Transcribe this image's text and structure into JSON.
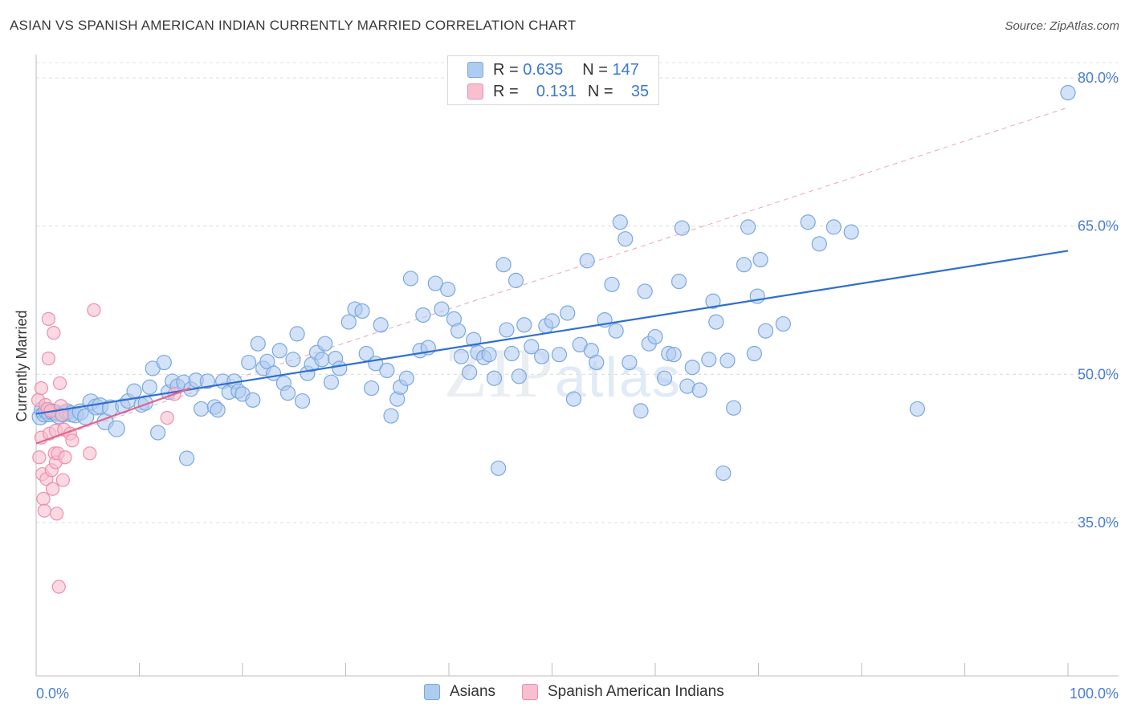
{
  "title": "ASIAN VS SPANISH AMERICAN INDIAN CURRENTLY MARRIED CORRELATION CHART",
  "source": "Source: ZipAtlas.com",
  "watermark": {
    "zip": "ZIP",
    "atlas": "atlas"
  },
  "legend": {
    "rows": [
      {
        "r_label": "R =",
        "r_value": "0.635",
        "n_label": "N =",
        "n_value": "147",
        "color": "#aecbf0",
        "border": "#7aa8e0"
      },
      {
        "r_label": "R =",
        "r_value": "0.131",
        "n_label": "N =",
        "n_value": "35",
        "color": "#f8bfcf",
        "border": "#ee8fab"
      }
    ]
  },
  "bottom_legend": [
    {
      "label": "Asians",
      "color": "#aecbf0",
      "border": "#7aa8e0"
    },
    {
      "label": "Spanish American Indians",
      "color": "#f8bfcf",
      "border": "#ee8fab"
    }
  ],
  "chart_data": {
    "type": "scatter",
    "title": "ASIAN VS SPANISH AMERICAN INDIAN CURRENTLY MARRIED CORRELATION CHART",
    "xlabel": "",
    "ylabel": "Currently Married",
    "xlim": [
      0,
      100
    ],
    "ylim": [
      20,
      82
    ],
    "x_tick_labels": [
      "0.0%",
      "100.0%"
    ],
    "y_ticks": [
      35,
      50,
      65,
      80
    ],
    "y_tick_labels": [
      "35.0%",
      "50.0%",
      "65.0%",
      "80.0%"
    ],
    "grid": true,
    "legend_position": "top-center",
    "series": [
      {
        "name": "Asians",
        "color": "#7aa8e0",
        "fill": "#aecbf0",
        "trend": {
          "x": [
            0,
            100
          ],
          "y": [
            46.0,
            62.5
          ],
          "color": "#2f6fd0"
        },
        "points": [
          [
            0.4,
            45.7
          ],
          [
            0.6,
            46.4
          ],
          [
            0.8,
            46.0
          ],
          [
            1.0,
            46.3
          ],
          [
            1.3,
            46.0
          ],
          [
            1.6,
            46.2
          ],
          [
            1.9,
            46.1
          ],
          [
            2.2,
            45.8
          ],
          [
            2.6,
            46.0
          ],
          [
            3.0,
            46.2
          ],
          [
            3.4,
            46.0
          ],
          [
            3.8,
            45.9
          ],
          [
            4.3,
            46.2
          ],
          [
            4.8,
            45.7
          ],
          [
            5.3,
            47.2
          ],
          [
            5.8,
            46.7
          ],
          [
            6.2,
            46.8
          ],
          [
            6.7,
            45.2
          ],
          [
            7.2,
            46.6
          ],
          [
            7.8,
            44.5
          ],
          [
            8.4,
            46.8
          ],
          [
            8.9,
            47.3
          ],
          [
            9.5,
            48.3
          ],
          [
            10.2,
            46.9
          ],
          [
            10.6,
            47.1
          ],
          [
            11.0,
            48.7
          ],
          [
            11.3,
            50.6
          ],
          [
            11.8,
            44.1
          ],
          [
            12.4,
            51.2
          ],
          [
            12.8,
            48.2
          ],
          [
            13.2,
            49.3
          ],
          [
            13.7,
            48.8
          ],
          [
            14.3,
            49.2
          ],
          [
            14.6,
            41.5
          ],
          [
            15.0,
            48.5
          ],
          [
            15.5,
            49.4
          ],
          [
            16.0,
            46.5
          ],
          [
            16.6,
            49.3
          ],
          [
            17.3,
            46.7
          ],
          [
            17.6,
            46.4
          ],
          [
            18.1,
            49.3
          ],
          [
            18.7,
            48.2
          ],
          [
            19.2,
            49.3
          ],
          [
            19.6,
            48.3
          ],
          [
            20.0,
            48.0
          ],
          [
            20.6,
            51.2
          ],
          [
            21.0,
            47.4
          ],
          [
            21.5,
            53.1
          ],
          [
            22.0,
            50.6
          ],
          [
            22.4,
            51.3
          ],
          [
            23.0,
            50.1
          ],
          [
            23.6,
            52.4
          ],
          [
            24.0,
            49.1
          ],
          [
            24.4,
            48.1
          ],
          [
            24.9,
            51.5
          ],
          [
            25.3,
            54.1
          ],
          [
            25.8,
            47.3
          ],
          [
            26.3,
            50.1
          ],
          [
            26.7,
            51.0
          ],
          [
            27.2,
            52.2
          ],
          [
            27.7,
            51.5
          ],
          [
            28.0,
            53.1
          ],
          [
            28.6,
            49.2
          ],
          [
            29.0,
            51.6
          ],
          [
            29.4,
            50.6
          ],
          [
            30.3,
            55.3
          ],
          [
            30.9,
            56.6
          ],
          [
            31.6,
            56.4
          ],
          [
            32.0,
            52.1
          ],
          [
            32.5,
            48.6
          ],
          [
            32.9,
            51.1
          ],
          [
            33.4,
            55.0
          ],
          [
            34.0,
            50.4
          ],
          [
            34.4,
            45.8
          ],
          [
            35.0,
            47.5
          ],
          [
            35.3,
            48.7
          ],
          [
            35.9,
            49.6
          ],
          [
            36.3,
            59.7
          ],
          [
            37.2,
            52.4
          ],
          [
            37.5,
            56.0
          ],
          [
            38.0,
            52.7
          ],
          [
            38.7,
            59.2
          ],
          [
            39.3,
            56.6
          ],
          [
            39.9,
            58.6
          ],
          [
            40.5,
            55.6
          ],
          [
            40.9,
            54.4
          ],
          [
            41.2,
            51.8
          ],
          [
            42.0,
            50.2
          ],
          [
            42.4,
            53.5
          ],
          [
            42.8,
            52.2
          ],
          [
            43.4,
            51.7
          ],
          [
            43.9,
            52.0
          ],
          [
            44.4,
            49.6
          ],
          [
            44.8,
            40.5
          ],
          [
            45.3,
            61.1
          ],
          [
            45.6,
            54.5
          ],
          [
            46.1,
            52.1
          ],
          [
            46.5,
            59.5
          ],
          [
            46.8,
            49.8
          ],
          [
            47.3,
            55.0
          ],
          [
            48.0,
            52.8
          ],
          [
            49.0,
            51.8
          ],
          [
            49.4,
            54.9
          ],
          [
            50.0,
            55.4
          ],
          [
            50.7,
            52.0
          ],
          [
            51.5,
            56.2
          ],
          [
            52.1,
            47.5
          ],
          [
            52.7,
            53.0
          ],
          [
            53.4,
            61.5
          ],
          [
            53.8,
            52.4
          ],
          [
            54.3,
            51.2
          ],
          [
            55.1,
            55.5
          ],
          [
            55.8,
            59.1
          ],
          [
            56.2,
            54.4
          ],
          [
            56.6,
            65.4
          ],
          [
            57.1,
            63.7
          ],
          [
            57.5,
            51.2
          ],
          [
            58.6,
            46.3
          ],
          [
            59.0,
            58.4
          ],
          [
            59.4,
            53.1
          ],
          [
            60.0,
            53.8
          ],
          [
            60.9,
            49.6
          ],
          [
            61.3,
            52.1
          ],
          [
            61.8,
            52.0
          ],
          [
            62.3,
            59.4
          ],
          [
            62.6,
            64.8
          ],
          [
            63.1,
            48.8
          ],
          [
            63.6,
            50.7
          ],
          [
            64.3,
            48.4
          ],
          [
            65.2,
            51.5
          ],
          [
            65.6,
            57.4
          ],
          [
            65.9,
            55.3
          ],
          [
            66.6,
            40.0
          ],
          [
            67.0,
            51.4
          ],
          [
            67.6,
            46.6
          ],
          [
            68.6,
            61.1
          ],
          [
            69.0,
            64.9
          ],
          [
            69.6,
            52.1
          ],
          [
            69.9,
            57.9
          ],
          [
            70.2,
            61.6
          ],
          [
            70.7,
            54.4
          ],
          [
            72.4,
            55.1
          ],
          [
            74.8,
            65.4
          ],
          [
            75.9,
            63.2
          ],
          [
            77.3,
            64.9
          ],
          [
            79.0,
            64.4
          ],
          [
            85.4,
            46.5
          ],
          [
            100.0,
            78.5
          ]
        ]
      },
      {
        "name": "Spanish American Indians",
        "color": "#ee8fab",
        "fill": "#f8bfcf",
        "trend": {
          "x": [
            0,
            15
          ],
          "y": [
            43.0,
            48.6
          ],
          "color": "#e06690"
        },
        "dashed_trend": {
          "x": [
            0,
            100
          ],
          "y": [
            43.0,
            77.0
          ],
          "color": "#e890aa"
        },
        "points": [
          [
            0.2,
            47.4
          ],
          [
            0.3,
            41.6
          ],
          [
            0.5,
            48.6
          ],
          [
            0.5,
            43.6
          ],
          [
            0.6,
            39.9
          ],
          [
            0.7,
            37.4
          ],
          [
            0.8,
            36.2
          ],
          [
            0.9,
            46.9
          ],
          [
            1.0,
            39.4
          ],
          [
            1.1,
            46.5
          ],
          [
            1.2,
            55.6
          ],
          [
            1.2,
            51.6
          ],
          [
            1.3,
            44.0
          ],
          [
            1.4,
            46.3
          ],
          [
            1.5,
            40.3
          ],
          [
            1.6,
            38.4
          ],
          [
            1.7,
            54.2
          ],
          [
            1.8,
            42.0
          ],
          [
            1.9,
            44.3
          ],
          [
            1.9,
            41.1
          ],
          [
            2.0,
            35.9
          ],
          [
            2.1,
            42.0
          ],
          [
            2.2,
            28.5
          ],
          [
            2.3,
            49.1
          ],
          [
            2.4,
            46.8
          ],
          [
            2.5,
            45.9
          ],
          [
            2.6,
            39.3
          ],
          [
            2.7,
            44.4
          ],
          [
            2.8,
            41.6
          ],
          [
            3.3,
            44.0
          ],
          [
            3.5,
            43.3
          ],
          [
            5.2,
            42.0
          ],
          [
            5.6,
            56.5
          ],
          [
            12.7,
            45.6
          ],
          [
            13.4,
            48.0
          ]
        ]
      }
    ]
  }
}
